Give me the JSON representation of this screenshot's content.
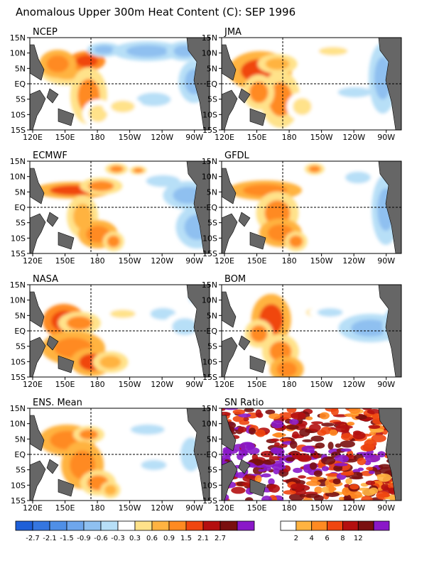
{
  "title": "Anomalous Upper 300m Heat Content (C): SEP 1996",
  "panels": [
    {
      "label": "NCEP",
      "kind": "anom",
      "blobs": [
        [
          60,
          100,
          38,
          20,
          0.9
        ],
        [
          92,
          86,
          26,
          14,
          2.0
        ],
        [
          45,
          90,
          26,
          20,
          1.3
        ],
        [
          95,
          135,
          26,
          40,
          1.1
        ],
        [
          110,
          160,
          22,
          20,
          0.6
        ],
        [
          120,
          70,
          24,
          10,
          -0.6
        ],
        [
          190,
          72,
          50,
          14,
          -0.6
        ],
        [
          250,
          72,
          26,
          14,
          -0.7
        ],
        [
          200,
          140,
          40,
          16,
          -0.5
        ],
        [
          265,
          115,
          22,
          30,
          -0.6
        ],
        [
          150,
          150,
          28,
          14,
          0.4
        ]
      ]
    },
    {
      "label": "JMA",
      "kind": "anom",
      "blobs": [
        [
          62,
          100,
          45,
          28,
          1.6
        ],
        [
          90,
          90,
          28,
          14,
          0.9
        ],
        [
          95,
          140,
          28,
          40,
          1.1
        ],
        [
          60,
          130,
          22,
          25,
          1.0
        ],
        [
          130,
          150,
          22,
          20,
          0.5
        ],
        [
          180,
          72,
          34,
          10,
          0.4
        ],
        [
          215,
          130,
          40,
          12,
          -0.4
        ],
        [
          260,
          110,
          20,
          50,
          -0.6
        ]
      ]
    },
    {
      "label": "ECMWF",
      "kind": "anom",
      "blobs": [
        [
          70,
          268,
          55,
          12,
          1.6
        ],
        [
          115,
          262,
          30,
          12,
          1.2
        ],
        [
          85,
          305,
          22,
          30,
          0.8
        ],
        [
          110,
          330,
          28,
          20,
          1.5
        ],
        [
          135,
          340,
          15,
          14,
          1.0
        ],
        [
          140,
          238,
          16,
          8,
          1.2
        ],
        [
          175,
          240,
          12,
          6,
          1.0
        ],
        [
          215,
          255,
          40,
          14,
          -0.4
        ],
        [
          255,
          275,
          35,
          20,
          -0.6
        ],
        [
          270,
          320,
          30,
          30,
          -0.6
        ]
      ]
    },
    {
      "label": "GFDL",
      "kind": "anom",
      "blobs": [
        [
          70,
          268,
          52,
          14,
          1.4
        ],
        [
          90,
          300,
          30,
          30,
          1.1
        ],
        [
          95,
          328,
          30,
          20,
          1.4
        ],
        [
          120,
          340,
          16,
          14,
          1.0
        ],
        [
          150,
          238,
          14,
          8,
          1.2
        ],
        [
          220,
          250,
          30,
          14,
          -0.4
        ],
        [
          265,
          295,
          20,
          50,
          -0.6
        ]
      ]
    },
    {
      "label": "NASA",
      "kind": "anom",
      "blobs": [
        [
          55,
          452,
          30,
          24,
          2.0
        ],
        [
          80,
          455,
          30,
          16,
          1.1
        ],
        [
          70,
          490,
          45,
          24,
          1.3
        ],
        [
          100,
          510,
          30,
          20,
          1.8
        ],
        [
          130,
          510,
          25,
          15,
          0.8
        ],
        [
          150,
          442,
          30,
          10,
          0.4
        ],
        [
          215,
          442,
          30,
          14,
          -0.4
        ],
        [
          250,
          460,
          30,
          20,
          -0.5
        ],
        [
          270,
          420,
          20,
          14,
          -0.5
        ]
      ]
    },
    {
      "label": "BOM",
      "kind": "anom",
      "blobs": [
        [
          80,
          450,
          28,
          36,
          1.7
        ],
        [
          95,
          495,
          26,
          24,
          1.2
        ],
        [
          60,
          470,
          20,
          20,
          1.0
        ],
        [
          105,
          520,
          24,
          18,
          1.3
        ],
        [
          150,
          440,
          20,
          10,
          0.5
        ],
        [
          175,
          440,
          30,
          10,
          -0.4
        ],
        [
          240,
          462,
          45,
          20,
          -0.6
        ],
        [
          280,
          458,
          18,
          25,
          -0.7
        ]
      ]
    },
    {
      "label": "ENS. Mean",
      "kind": "anom",
      "blobs": [
        [
          60,
          620,
          40,
          22,
          1.3
        ],
        [
          95,
          612,
          22,
          12,
          1.0
        ],
        [
          85,
          655,
          30,
          34,
          1.3
        ],
        [
          110,
          680,
          25,
          18,
          1.0
        ],
        [
          130,
          690,
          14,
          12,
          0.7
        ],
        [
          190,
          605,
          40,
          12,
          -0.4
        ],
        [
          260,
          640,
          25,
          40,
          -0.5
        ],
        [
          200,
          655,
          30,
          12,
          -0.3
        ]
      ]
    },
    {
      "label": "SN Ratio",
      "kind": "sn"
    }
  ],
  "lon_ticks": [
    "120E",
    "150E",
    "180",
    "150W",
    "120W",
    "90W"
  ],
  "lat_ticks": [
    "15N",
    "10N",
    "5N",
    "EQ",
    "5S",
    "10S",
    "15S"
  ],
  "anom_colorbar": {
    "colors": [
      "#1e5fd8",
      "#3576e0",
      "#4f8fe6",
      "#6ea6ec",
      "#8fc0f0",
      "#b7dff7",
      "#ffffff",
      "#ffe28a",
      "#ffb341",
      "#ff8a21",
      "#f0460f",
      "#b40f0f",
      "#7a0f0f",
      "#8a18c8"
    ],
    "labels": [
      "-2.7",
      "-2.1",
      "-1.5",
      "-0.9",
      "-0.6",
      "-0.3",
      "0.3",
      "0.6",
      "0.9",
      "1.5",
      "2.1",
      "2.7"
    ]
  },
  "sn_colorbar": {
    "colors": [
      "#ffffff",
      "#ffb341",
      "#ff8a21",
      "#f0460f",
      "#b40f0f",
      "#7a0f0f",
      "#8a18c8"
    ],
    "labels": [
      "2",
      "4",
      "6",
      "8",
      "12"
    ]
  }
}
